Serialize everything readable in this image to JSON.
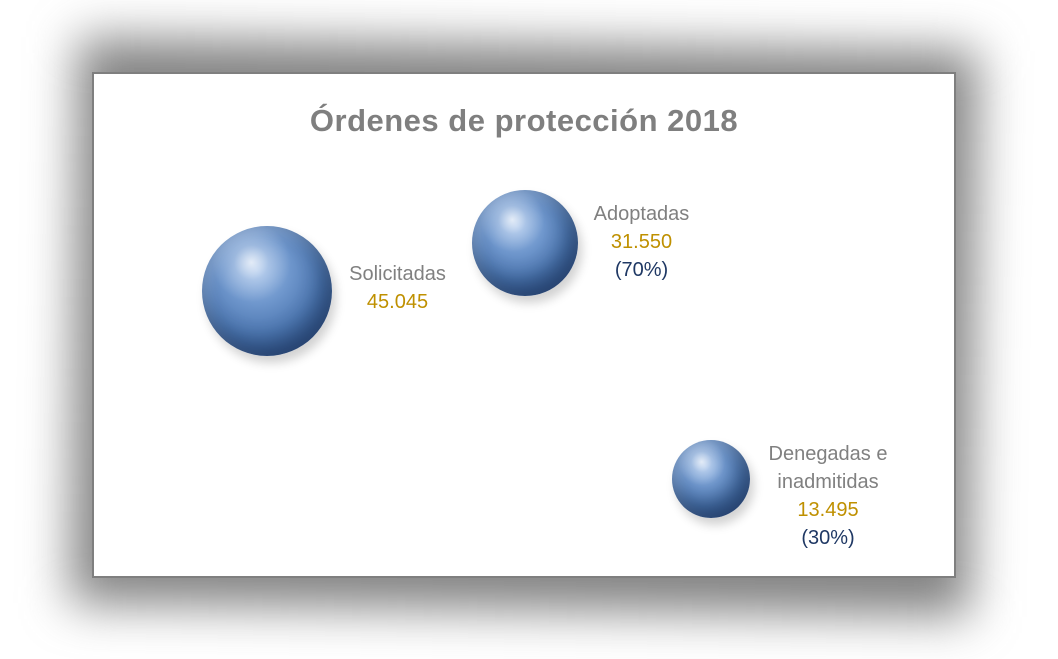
{
  "title": "Órdenes de protección 2018",
  "colors": {
    "title_text": "#7f7f7f",
    "category_label": "#808080",
    "value_text": "#bf9000",
    "percent_text": "#1f3864",
    "bubble_fill": "#4a74ae",
    "panel_border": "#7f7f7f",
    "panel_background": "#ffffff"
  },
  "chart_data": {
    "type": "scatter",
    "subtype": "bubble",
    "title": "Órdenes de protección 2018",
    "xlabel": "",
    "ylabel": "",
    "legend": "none",
    "axes_visible": false,
    "grid": false,
    "bubble_sizing": "area proportional to value",
    "series": [
      {
        "name": "Solicitadas",
        "value": 45045,
        "display_value": "45.045",
        "percent": null,
        "display_percent": ""
      },
      {
        "name": "Adoptadas",
        "value": 31550,
        "display_value": "31.550",
        "percent": 70,
        "display_percent": "(70%)"
      },
      {
        "name": "Denegadas e inadmitidas",
        "value": 13495,
        "display_value": "13.495",
        "percent": 30,
        "display_percent": "(30%)"
      }
    ]
  }
}
